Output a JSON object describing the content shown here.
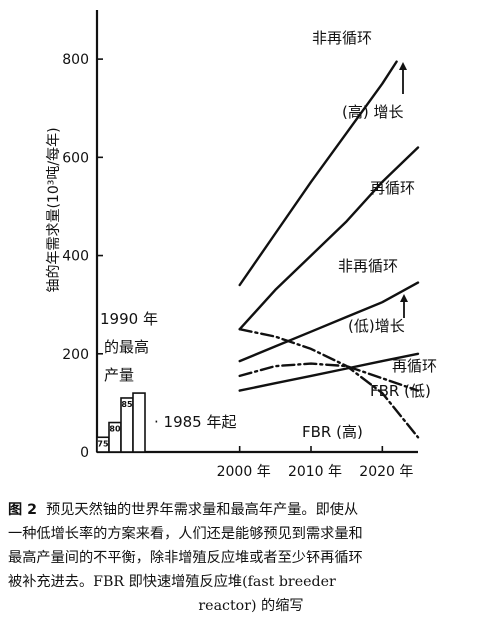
{
  "chart_data": {
    "type": "line",
    "title": "",
    "ylabel": "铀的年需求量(10³吨/每年)",
    "ylabel_unit_super": "3",
    "xlim": [
      1980,
      2025
    ],
    "ylim": [
      0,
      900
    ],
    "xticks": [
      {
        "value": 2000,
        "label": "2000 年"
      },
      {
        "value": 2010,
        "label": "2010 年"
      },
      {
        "value": 2020,
        "label": "2020 年"
      }
    ],
    "yticks": [
      0,
      200,
      400,
      600,
      800
    ],
    "series": [
      {
        "name": "非再循环 (高)",
        "style": "solid",
        "x": [
          2000,
          2005,
          2010,
          2015,
          2020,
          2022
        ],
        "y": [
          340,
          445,
          550,
          650,
          750,
          795
        ]
      },
      {
        "name": "再循环 (高)",
        "style": "solid",
        "x": [
          2000,
          2005,
          2010,
          2015,
          2020,
          2025
        ],
        "y": [
          250,
          330,
          400,
          470,
          550,
          620
        ]
      },
      {
        "name": "非再循环 (低)",
        "style": "solid",
        "x": [
          2000,
          2005,
          2010,
          2015,
          2020,
          2025
        ],
        "y": [
          185,
          215,
          245,
          275,
          305,
          345
        ]
      },
      {
        "name": "再循环 (低)",
        "style": "solid",
        "x": [
          2000,
          2005,
          2010,
          2015,
          2020,
          2025
        ],
        "y": [
          125,
          140,
          155,
          170,
          185,
          200
        ]
      },
      {
        "name": "FBR (低)",
        "style": "dashdot",
        "x": [
          2000,
          2005,
          2010,
          2015,
          2020,
          2025
        ],
        "y": [
          155,
          175,
          180,
          175,
          150,
          125
        ]
      },
      {
        "name": "FBR (高)",
        "style": "dashdot",
        "x": [
          2000,
          2005,
          2010,
          2015,
          2020,
          2025
        ],
        "y": [
          250,
          235,
          210,
          175,
          120,
          30
        ]
      }
    ],
    "production_bars": [
      {
        "label": "75",
        "value": 30
      },
      {
        "label": "80",
        "value": 60
      },
      {
        "label": "85",
        "value": 110
      },
      {
        "label": "",
        "value": 120
      }
    ],
    "annotations": {
      "nonrecycle_top": "非再循环",
      "high_growth": "(高) 增长",
      "recycle_top": "再循环",
      "nonrecycle_mid": "非再循环",
      "low_growth": "(低)增长",
      "recycle_low": "再循环",
      "fbr_low": "FBR (低)",
      "fbr_high": "FBR (高)",
      "peak_1990_line1": "1990 年",
      "peak_1990_line2": "的最高",
      "peak_1990_line3": "产量",
      "since_1985": "· 1985 年起"
    }
  },
  "caption": {
    "line1": "预见天然铀的世界年需求量和最高年产量。即使从",
    "fig_label": "图 2",
    "line2": "一种低增长率的方案来看，人们还是能够预见到需求量和",
    "line3": "最高产量间的不平衡，除非增殖反应堆或者至少钚再循环",
    "line4": "被补充进去。FBR 即快速增殖反应堆(fast breeder",
    "line5": "reactor) 的缩写"
  }
}
